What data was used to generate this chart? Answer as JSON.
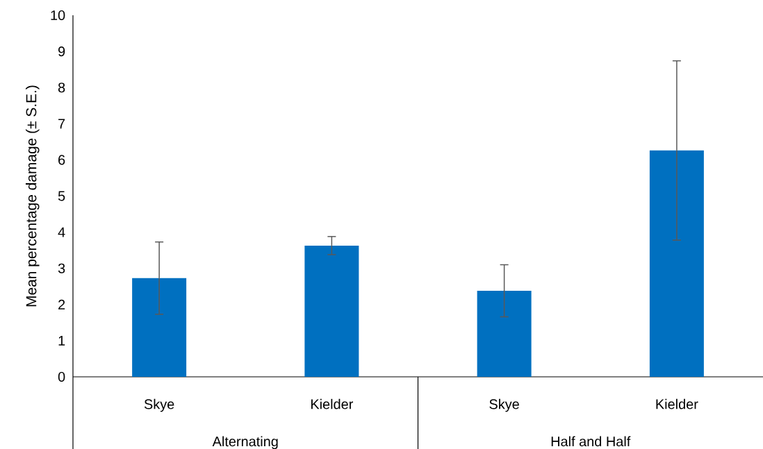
{
  "chart_data": {
    "type": "bar",
    "ylabel": "Mean percentage damage (± S.E.)",
    "categories": [
      "Skye",
      "Kielder",
      "Skye",
      "Kielder"
    ],
    "values": [
      2.73,
      3.63,
      2.38,
      6.26
    ],
    "errors": [
      1.0,
      0.25,
      0.72,
      2.48
    ],
    "color": "#0070c0",
    "ylim": [
      0,
      10
    ],
    "yticks": [
      0,
      1,
      2,
      3,
      4,
      5,
      6,
      7,
      8,
      9,
      10
    ],
    "annotations": [
      "Alternating",
      "Half and Half"
    ]
  }
}
